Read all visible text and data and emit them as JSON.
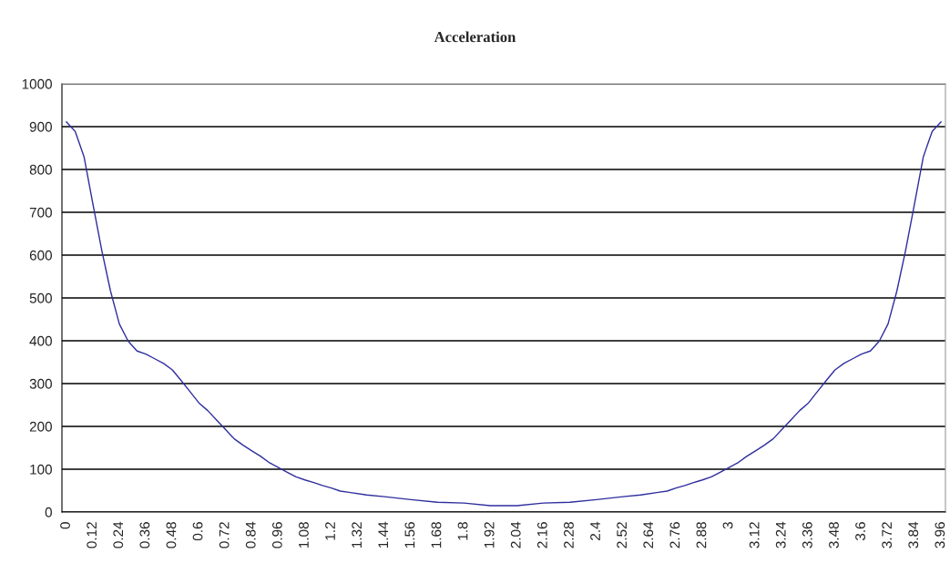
{
  "chart_data": {
    "type": "line",
    "title": "Acceleration",
    "x": [
      0,
      0.04,
      0.08,
      0.12,
      0.16,
      0.2,
      0.24,
      0.28,
      0.32,
      0.36,
      0.4,
      0.44,
      0.48,
      0.52,
      0.56,
      0.6,
      0.64,
      0.68,
      0.72,
      0.76,
      0.8,
      0.84,
      0.88,
      0.92,
      0.96,
      1.0,
      1.04,
      1.08,
      1.12,
      1.16,
      1.2,
      1.24,
      1.28,
      1.36,
      1.44,
      1.56,
      1.68,
      1.8,
      1.92,
      1.98,
      2.04,
      2.16,
      2.28,
      2.4,
      2.52,
      2.6,
      2.68,
      2.72,
      2.76,
      2.8,
      2.84,
      2.88,
      2.92,
      2.96,
      3.0,
      3.04,
      3.08,
      3.12,
      3.16,
      3.2,
      3.24,
      3.28,
      3.32,
      3.36,
      3.4,
      3.44,
      3.48,
      3.52,
      3.56,
      3.6,
      3.64,
      3.68,
      3.72,
      3.76,
      3.8,
      3.84,
      3.88,
      3.92,
      3.96
    ],
    "series": [
      {
        "color": "#2e2e9e",
        "values": [
          911,
          889,
          830,
          720,
          612,
          516,
          439,
          399,
          376,
          369,
          358,
          347,
          332,
          307,
          281,
          255,
          237,
          215,
          193,
          171,
          156,
          143,
          130,
          115,
          104,
          93,
          82,
          75,
          69,
          62,
          56,
          49,
          46,
          40,
          36,
          29,
          23,
          21,
          15,
          15,
          15,
          21,
          23,
          29,
          36,
          40,
          46,
          49,
          56,
          62,
          69,
          75,
          82,
          93,
          104,
          115,
          130,
          143,
          156,
          171,
          193,
          215,
          237,
          255,
          281,
          307,
          332,
          347,
          358,
          369,
          376,
          399,
          439,
          516,
          612,
          720,
          830,
          889,
          911
        ]
      }
    ],
    "xlim": [
      -0.02,
      3.98
    ],
    "xticks": [
      0,
      0.12,
      0.24,
      0.36,
      0.48,
      0.6,
      0.72,
      0.84,
      0.96,
      1.08,
      1.2,
      1.32,
      1.44,
      1.56,
      1.68,
      1.8,
      1.92,
      2.04,
      2.16,
      2.28,
      2.4,
      2.52,
      2.64,
      2.76,
      2.88,
      3,
      3.12,
      3.24,
      3.36,
      3.48,
      3.6,
      3.72,
      3.84,
      3.96
    ],
    "ylim": [
      0,
      1000
    ],
    "yticks": [
      0,
      100,
      200,
      300,
      400,
      500,
      600,
      700,
      800,
      900,
      1000
    ],
    "grid": "y",
    "marker": "none",
    "line_style": "solid"
  }
}
